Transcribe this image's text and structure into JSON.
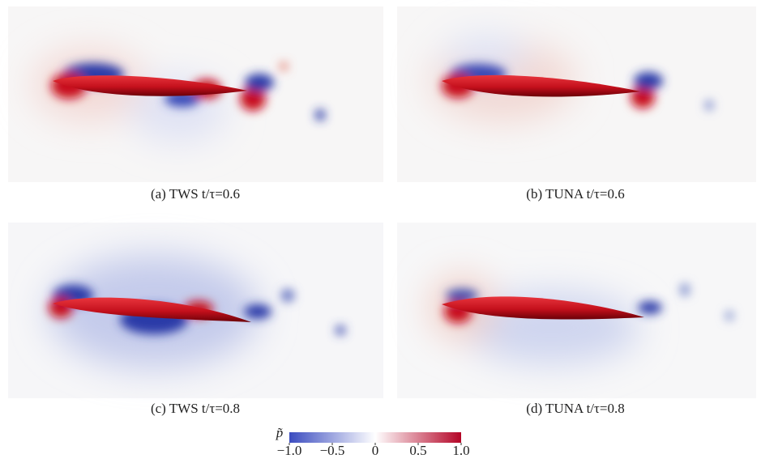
{
  "panels": [
    {
      "caption": "(a) TWS t/τ=0.6"
    },
    {
      "caption": "(b) TUNA t/τ=0.6"
    },
    {
      "caption": "(c) TWS t/τ=0.8"
    },
    {
      "caption": "(d) TUNA t/τ=0.8"
    }
  ],
  "colorbar": {
    "label": "p̃",
    "lim": [
      -1,
      1
    ],
    "ticks": [
      {
        "value": -1,
        "label": "−1.0"
      },
      {
        "value": -0.5,
        "label": "−0.5"
      },
      0,
      0.5,
      {
        "value": 1,
        "label": "1.0"
      }
    ],
    "colors": [
      "#3b4cc0",
      "#ffffff",
      "#b40426"
    ]
  }
}
